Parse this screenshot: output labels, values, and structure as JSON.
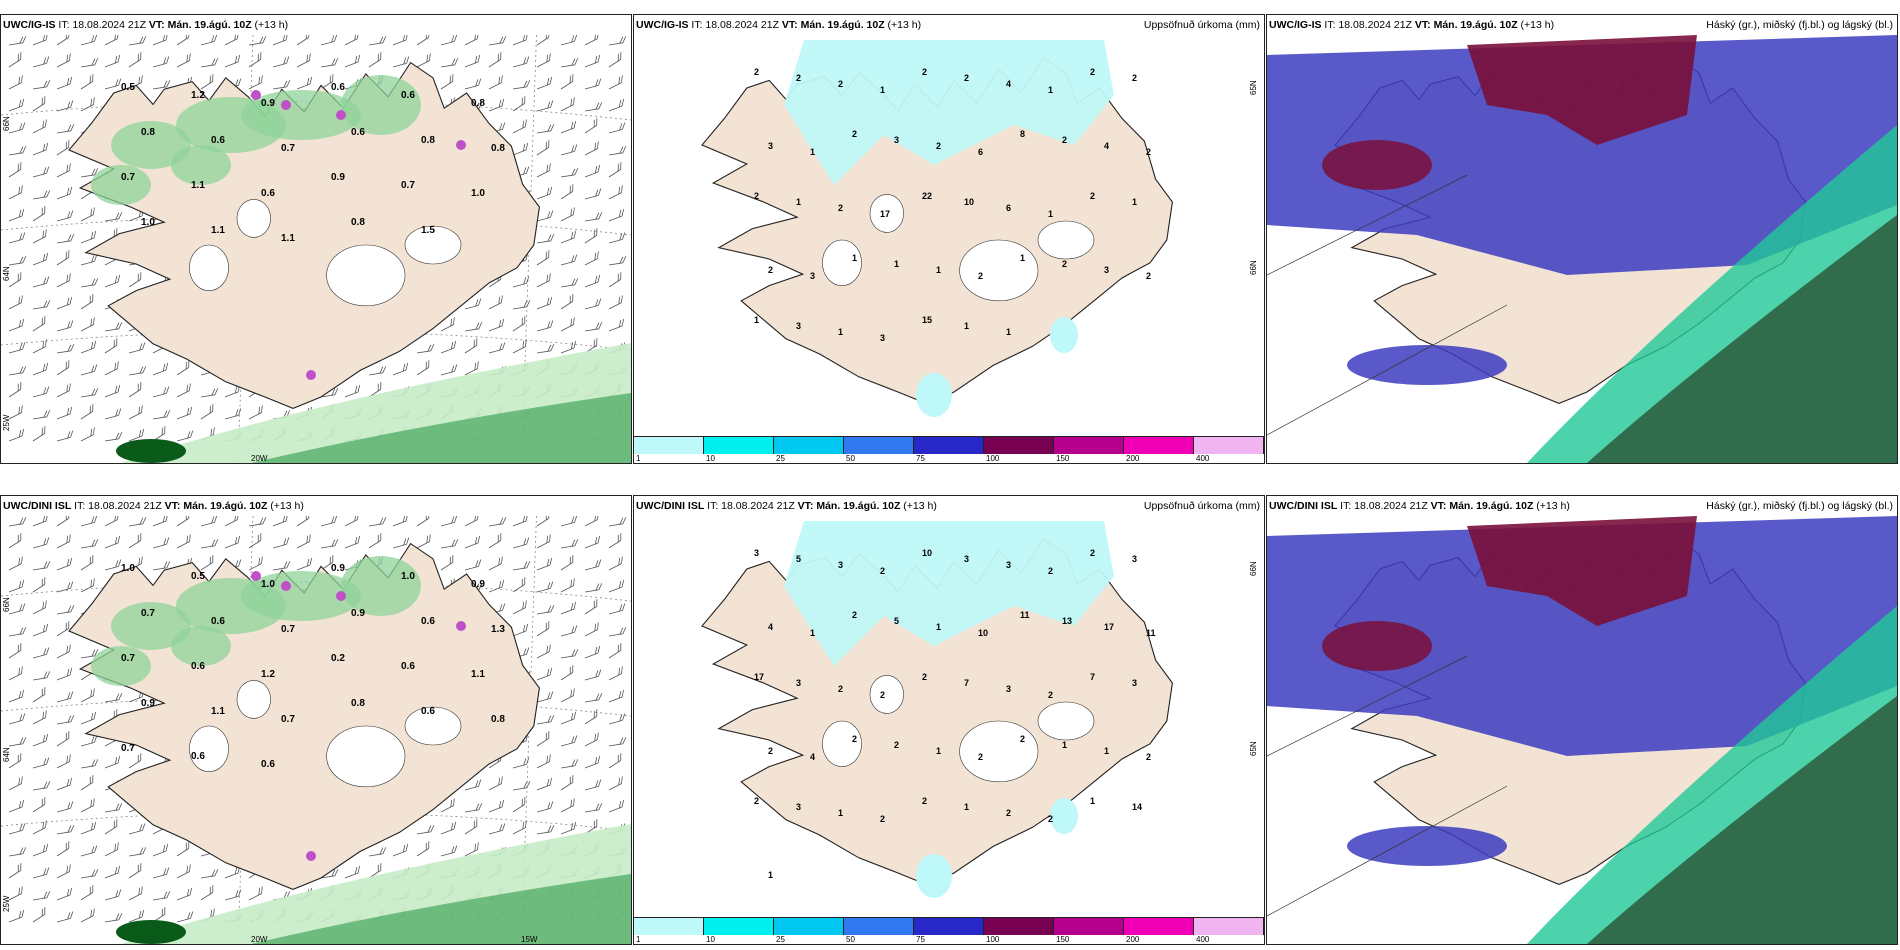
{
  "panels": [
    {
      "id": "p1",
      "kind": "wind",
      "model": "UWC/IG-IS",
      "it": "IT: 18.08.2024 21Z",
      "vt_label": "VT:",
      "vt": "Mán. 19.ágú. 10Z",
      "lead": "(+13 h)",
      "right_title": "",
      "values": [
        "0.5",
        "1.2",
        "0.9",
        "0.6",
        "0.6",
        "0.8",
        "0.8",
        "0.6",
        "0.7",
        "0.6",
        "0.8",
        "0.8",
        "0.7",
        "1.1",
        "0.6",
        "0.9",
        "0.7",
        "1.0",
        "1.0",
        "1.1",
        "1.1",
        "0.8",
        "1.5"
      ],
      "lat_labels": [
        "66N",
        "64N",
        "25W"
      ],
      "lon_labels": [
        "20W"
      ]
    },
    {
      "id": "p2",
      "kind": "precip",
      "model": "UWC/IG-IS",
      "it": "IT: 18.08.2024 21Z",
      "vt_label": "VT:",
      "vt": "Mán. 19.ágú. 10Z",
      "lead": "(+13 h)",
      "right_title": "Uppsöfnuð úrkoma (mm)",
      "values": [
        "2",
        "2",
        "2",
        "1",
        "2",
        "2",
        "4",
        "1",
        "2",
        "2",
        "3",
        "1",
        "2",
        "3",
        "2",
        "6",
        "8",
        "2",
        "4",
        "2",
        "2",
        "1",
        "2",
        "17",
        "22",
        "10",
        "6",
        "1",
        "2",
        "1",
        "2",
        "3",
        "1",
        "1",
        "1",
        "2",
        "1",
        "2",
        "3",
        "2",
        "1",
        "3",
        "1",
        "3",
        "15",
        "1",
        "1"
      ],
      "lat_labels": [
        "65N",
        "66N"
      ],
      "lon_labels": []
    },
    {
      "id": "p3",
      "kind": "cloud",
      "model": "UWC/IG-IS",
      "it": "IT: 18.08.2024 21Z",
      "vt_label": "VT:",
      "vt": "Mán. 19.ágú. 10Z",
      "lead": "(+13 h)",
      "right_title": "Háský (gr.), miðský (fj.bl.) og lágský (bl.)",
      "values": [],
      "lat_labels": [],
      "lon_labels": []
    },
    {
      "id": "p4",
      "kind": "wind",
      "model": "UWC/DINI ISL",
      "it": "IT: 18.08.2024 21Z",
      "vt_label": "VT:",
      "vt": "Mán. 19.ágú. 10Z",
      "lead": "(+13 h)",
      "right_title": "",
      "values": [
        "1.0",
        "0.5",
        "1.0",
        "0.9",
        "1.0",
        "0.9",
        "0.7",
        "0.6",
        "0.7",
        "0.9",
        "0.6",
        "1.3",
        "0.7",
        "0.6",
        "1.2",
        "0.2",
        "0.6",
        "1.1",
        "0.9",
        "1.1",
        "0.7",
        "0.8",
        "0.6",
        "0.8",
        "0.7",
        "0.6",
        "0.6"
      ],
      "lat_labels": [
        "66N",
        "64N",
        "25W"
      ],
      "lon_labels": [
        "20W",
        "15W"
      ]
    },
    {
      "id": "p5",
      "kind": "precip",
      "model": "UWC/DINI ISL",
      "it": "IT: 18.08.2024 21Z",
      "vt_label": "VT:",
      "vt": "Mán. 19.ágú. 10Z",
      "lead": "(+13 h)",
      "right_title": "Uppsöfnuð úrkoma (mm)",
      "values": [
        "3",
        "5",
        "3",
        "2",
        "10",
        "3",
        "3",
        "2",
        "2",
        "3",
        "4",
        "1",
        "2",
        "5",
        "1",
        "10",
        "11",
        "13",
        "17",
        "11",
        "17",
        "3",
        "2",
        "2",
        "2",
        "7",
        "3",
        "2",
        "7",
        "3",
        "2",
        "4",
        "2",
        "2",
        "1",
        "2",
        "2",
        "1",
        "1",
        "2",
        "2",
        "3",
        "1",
        "2",
        "2",
        "1",
        "2",
        "2",
        "1",
        "14",
        "1"
      ],
      "lat_labels": [
        "66N",
        "65N"
      ],
      "lon_labels": []
    },
    {
      "id": "p6",
      "kind": "cloud",
      "model": "UWC/DINI ISL",
      "it": "IT: 18.08.2024 21Z",
      "vt_label": "VT:",
      "vt": "Mán. 19.ágú. 10Z",
      "lead": "(+13 h)",
      "right_title": "Háský (gr.), miðský (fj.bl.) og lágský (bl.)",
      "values": [],
      "lat_labels": [],
      "lon_labels": []
    }
  ],
  "precip_legend": {
    "ticks": [
      "1",
      "10",
      "25",
      "50",
      "75",
      "100",
      "150",
      "200",
      "400"
    ],
    "colors": [
      "#bff8f8",
      "#00f0f0",
      "#00c8f0",
      "#3278f0",
      "#2828c8",
      "#780050",
      "#b4008c",
      "#f000b4",
      "#f0b4f0"
    ]
  },
  "colors": {
    "land": "#f2e3d4",
    "green_light": "#c8ecc8",
    "green_mid": "#8fd49a",
    "green_dark": "#2f9a4a",
    "green_deep": "#0a5a1a",
    "magenta": "#c050c8",
    "precip_light": "#bff8f8",
    "cloud_high": "#7a0f3a",
    "cloud_mid": "#3c3cc0",
    "cloud_low": "#20c896",
    "cloud_dark": "#2d5a3c"
  }
}
